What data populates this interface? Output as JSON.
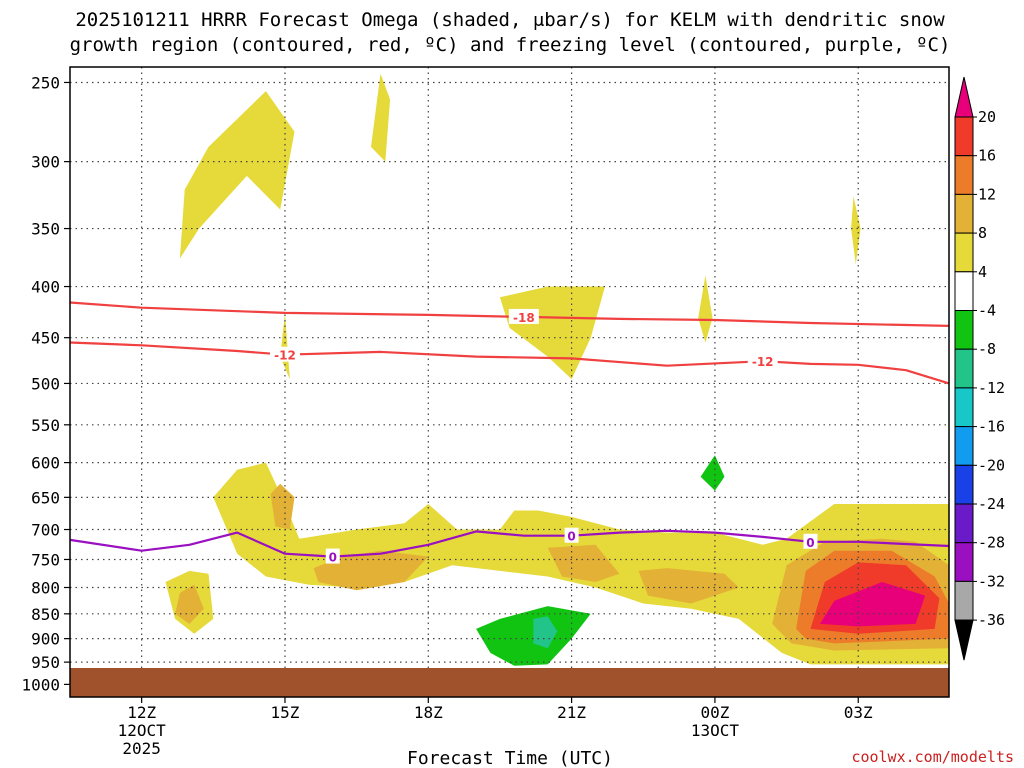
{
  "chart_data": {
    "type": "time-height cross section",
    "title_line1": "2025101211 HRRR Forecast Omega (shaded, μbar/s) for KELM with dendritic snow",
    "title_line2": "growth region (contoured, red, ºC) and freezing level (contoured, purple, ºC)",
    "xlabel": "Forecast Time (UTC)",
    "credit": "coolwx.com/modelts",
    "y_ticks": [
      250,
      300,
      350,
      400,
      450,
      500,
      550,
      600,
      650,
      700,
      750,
      800,
      850,
      900,
      950,
      1000
    ],
    "x_range_hours": [
      10.5,
      4.9
    ],
    "x_ticks": [
      {
        "hour": 12,
        "label": "12Z",
        "sub1": "12OCT",
        "sub2": "2025"
      },
      {
        "hour": 15,
        "label": "15Z",
        "sub1": "",
        "sub2": ""
      },
      {
        "hour": 18,
        "label": "18Z",
        "sub1": "",
        "sub2": ""
      },
      {
        "hour": 21,
        "label": "21Z",
        "sub1": "",
        "sub2": ""
      },
      {
        "hour": 0,
        "label": "00Z",
        "sub1": "13OCT",
        "sub2": ""
      },
      {
        "hour": 3,
        "label": "03Z",
        "sub1": "",
        "sub2": ""
      }
    ],
    "colorbar": {
      "labels": [
        "20",
        "16",
        "12",
        "8",
        "4",
        "-4",
        "-8",
        "-12",
        "-16",
        "-20",
        "-24",
        "-28",
        "-32",
        "-36"
      ],
      "colors": [
        "#e8007a",
        "#f03a2a",
        "#ec7c2a",
        "#e3b135",
        "#e6d93a",
        "#ffffff",
        "#12c412",
        "#22c48a",
        "#18c8c8",
        "#129cf0",
        "#1a40e8",
        "#6a1ac8",
        "#9a10c0",
        "#a8a8a8"
      ],
      "top_color": "#e8007a",
      "bottom_color": "#000000"
    },
    "contours": [
      {
        "name": "dgz-upper",
        "value": "-18",
        "color": "#f04040",
        "points": [
          [
            10.5,
            415
          ],
          [
            12,
            420
          ],
          [
            15,
            425
          ],
          [
            18,
            427
          ],
          [
            20,
            429
          ],
          [
            22,
            431
          ],
          [
            24,
            432
          ],
          [
            26,
            435
          ],
          [
            28.9,
            438
          ]
        ],
        "label_at": 20
      },
      {
        "name": "dgz-lower",
        "value": "-12",
        "color": "#f04040",
        "points": [
          [
            10.5,
            455
          ],
          [
            12,
            458
          ],
          [
            14,
            464
          ],
          [
            15,
            468
          ],
          [
            17,
            465
          ],
          [
            19,
            470
          ],
          [
            21,
            472
          ],
          [
            23,
            480
          ],
          [
            25,
            475
          ],
          [
            26,
            478
          ],
          [
            27,
            479
          ],
          [
            28,
            485
          ],
          [
            28.9,
            500
          ]
        ],
        "label_at": 15,
        "label_at2": 25
      },
      {
        "name": "freezing-level",
        "value": "0",
        "color": "#9a10c0",
        "points": [
          [
            10.5,
            717
          ],
          [
            12,
            735
          ],
          [
            13,
            725
          ],
          [
            14,
            705
          ],
          [
            15,
            740
          ],
          [
            16,
            745
          ],
          [
            17,
            740
          ],
          [
            18,
            725
          ],
          [
            19,
            703
          ],
          [
            20,
            710
          ],
          [
            21,
            710
          ],
          [
            22,
            705
          ],
          [
            23,
            702
          ],
          [
            24,
            705
          ],
          [
            25,
            712
          ],
          [
            26,
            720
          ],
          [
            27,
            720
          ],
          [
            28.9,
            727
          ]
        ],
        "label_at": 16,
        "label_at2": 21,
        "label_at3": 26
      }
    ],
    "omega_regions": [
      {
        "level": 4,
        "pts": [
          [
            12.8,
            375
          ],
          [
            12.9,
            320
          ],
          [
            13.4,
            290
          ],
          [
            14.6,
            255
          ],
          [
            15.2,
            280
          ],
          [
            14.9,
            335
          ],
          [
            14.2,
            310
          ],
          [
            13.2,
            350
          ]
        ]
      },
      {
        "level": 4,
        "pts": [
          [
            16.8,
            290
          ],
          [
            17,
            245
          ],
          [
            17.2,
            260
          ],
          [
            17.1,
            300
          ]
        ]
      },
      {
        "level": 4,
        "pts": [
          [
            15,
            425
          ],
          [
            15.1,
            495
          ],
          [
            14.9,
            470
          ]
        ]
      },
      {
        "level": 4,
        "pts": [
          [
            19.5,
            410
          ],
          [
            20.5,
            400
          ],
          [
            21.7,
            400
          ],
          [
            21.4,
            450
          ],
          [
            21,
            495
          ],
          [
            20.5,
            470
          ],
          [
            19.7,
            440
          ]
        ]
      },
      {
        "level": 4,
        "pts": [
          [
            23.8,
            390
          ],
          [
            23.95,
            430
          ],
          [
            23.8,
            455
          ],
          [
            23.65,
            430
          ]
        ]
      },
      {
        "level": 4,
        "pts": [
          [
            26.9,
            325
          ],
          [
            27.05,
            350
          ],
          [
            26.95,
            380
          ],
          [
            26.85,
            350
          ]
        ]
      },
      {
        "level": 4,
        "pts": [
          [
            13.5,
            650
          ],
          [
            14,
            610
          ],
          [
            14.6,
            600
          ],
          [
            15,
            660
          ],
          [
            15.3,
            715
          ],
          [
            16.5,
            700
          ],
          [
            17.5,
            690
          ],
          [
            18,
            660
          ],
          [
            18.6,
            700
          ],
          [
            19,
            700
          ],
          [
            19.5,
            700
          ],
          [
            19.8,
            670
          ],
          [
            20.3,
            670
          ],
          [
            21,
            680
          ],
          [
            22,
            700
          ],
          [
            23,
            705
          ],
          [
            24,
            705
          ],
          [
            25,
            725
          ],
          [
            25.5,
            715
          ],
          [
            26.5,
            660
          ],
          [
            28.9,
            660
          ],
          [
            28.9,
            955
          ],
          [
            26,
            955
          ],
          [
            25.4,
            930
          ],
          [
            24.5,
            860
          ],
          [
            23.5,
            840
          ],
          [
            22.5,
            830
          ],
          [
            21.5,
            800
          ],
          [
            20.5,
            780
          ],
          [
            19.5,
            770
          ],
          [
            18.5,
            760
          ],
          [
            17.5,
            790
          ],
          [
            16.5,
            800
          ],
          [
            15.5,
            795
          ],
          [
            14.6,
            780
          ],
          [
            14,
            740
          ]
        ]
      },
      {
        "level": 4,
        "pts": [
          [
            12.5,
            790
          ],
          [
            13,
            770
          ],
          [
            13.4,
            775
          ],
          [
            13.5,
            860
          ],
          [
            13.1,
            890
          ],
          [
            12.7,
            860
          ]
        ]
      },
      {
        "level": 8,
        "pts": [
          [
            14.7,
            645
          ],
          [
            14.9,
            630
          ],
          [
            15.2,
            650
          ],
          [
            15.1,
            700
          ],
          [
            14.8,
            695
          ]
        ]
      },
      {
        "level": 8,
        "pts": [
          [
            15.6,
            765
          ],
          [
            16.2,
            745
          ],
          [
            17,
            735
          ],
          [
            18,
            745
          ],
          [
            17.5,
            790
          ],
          [
            16.5,
            805
          ],
          [
            15.7,
            790
          ]
        ]
      },
      {
        "level": 8,
        "pts": [
          [
            20.5,
            730
          ],
          [
            21.5,
            725
          ],
          [
            22,
            775
          ],
          [
            21.5,
            790
          ],
          [
            20.8,
            780
          ]
        ]
      },
      {
        "level": 8,
        "pts": [
          [
            22.4,
            770
          ],
          [
            23,
            765
          ],
          [
            24.2,
            775
          ],
          [
            24.5,
            800
          ],
          [
            23.5,
            830
          ],
          [
            22.6,
            815
          ]
        ]
      },
      {
        "level": 8,
        "pts": [
          [
            12.8,
            810
          ],
          [
            13.1,
            795
          ],
          [
            13.3,
            840
          ],
          [
            13,
            870
          ],
          [
            12.7,
            850
          ]
        ]
      },
      {
        "level": 8,
        "pts": [
          [
            25.2,
            870
          ],
          [
            25.5,
            760
          ],
          [
            26.3,
            720
          ],
          [
            27.5,
            715
          ],
          [
            28.2,
            720
          ],
          [
            28.9,
            760
          ],
          [
            28.9,
            920
          ],
          [
            26.5,
            925
          ],
          [
            25.6,
            910
          ]
        ]
      },
      {
        "level": 12,
        "pts": [
          [
            25.7,
            880
          ],
          [
            25.9,
            770
          ],
          [
            26.5,
            735
          ],
          [
            27.7,
            735
          ],
          [
            28.6,
            780
          ],
          [
            28.9,
            830
          ],
          [
            28.9,
            900
          ],
          [
            26.5,
            910
          ],
          [
            25.9,
            900
          ]
        ]
      },
      {
        "level": 16,
        "pts": [
          [
            26,
            880
          ],
          [
            26.3,
            790
          ],
          [
            27,
            755
          ],
          [
            28,
            760
          ],
          [
            28.7,
            820
          ],
          [
            28.6,
            880
          ],
          [
            27,
            890
          ]
        ]
      },
      {
        "level": 20,
        "pts": [
          [
            26.2,
            870
          ],
          [
            26.5,
            825
          ],
          [
            27.5,
            790
          ],
          [
            28.4,
            815
          ],
          [
            28.2,
            870
          ],
          [
            27,
            875
          ]
        ]
      },
      {
        "level": -4,
        "pts": [
          [
            11.7,
            660
          ],
          [
            12.2,
            620
          ],
          [
            12.9,
            595
          ],
          [
            12.9,
            640
          ],
          [
            12.5,
            690
          ],
          [
            12,
            700
          ]
        ]
      },
      {
        "level": -4,
        "pts": [
          [
            13.6,
            470
          ],
          [
            14.2,
            450
          ],
          [
            14.2,
            500
          ],
          [
            13.8,
            510
          ],
          [
            13.5,
            480
          ]
        ]
      },
      {
        "level": -4,
        "pts": [
          [
            11.8,
            890
          ],
          [
            11.9,
            850
          ],
          [
            12.1,
            880
          ],
          [
            12,
            925
          ],
          [
            11.8,
            915
          ]
        ]
      },
      {
        "level": -4,
        "pts": [
          [
            14.3,
            930
          ],
          [
            14.6,
            880
          ],
          [
            15.5,
            860
          ],
          [
            15.5,
            920
          ],
          [
            15,
            950
          ],
          [
            14.4,
            955
          ]
        ]
      },
      {
        "level": -4,
        "pts": [
          [
            16.5,
            610
          ],
          [
            17,
            580
          ],
          [
            17.3,
            570
          ],
          [
            17.4,
            600
          ],
          [
            16.8,
            625
          ]
        ]
      },
      {
        "level": -4,
        "pts": [
          [
            19.2,
            575
          ],
          [
            19.5,
            570
          ],
          [
            20.1,
            540
          ],
          [
            20.5,
            580
          ],
          [
            19.5,
            585
          ]
        ]
      },
      {
        "level": -4,
        "pts": [
          [
            23.3,
            640
          ],
          [
            23.6,
            585
          ],
          [
            24,
            550
          ],
          [
            24.4,
            570
          ],
          [
            24.5,
            620
          ],
          [
            24.1,
            660
          ],
          [
            23.5,
            665
          ]
        ]
      },
      {
        "level": -4,
        "pts": [
          [
            17.9,
            930
          ],
          [
            18.4,
            860
          ],
          [
            19.5,
            820
          ],
          [
            20.8,
            800
          ],
          [
            21.5,
            830
          ],
          [
            22,
            870
          ],
          [
            23,
            945
          ],
          [
            23.5,
            960
          ],
          [
            23.9,
            975
          ],
          [
            17.9,
            975
          ]
        ]
      },
      {
        "level": -4,
        "pts": [
          [
            25,
            970
          ],
          [
            26,
            965
          ],
          [
            28.9,
            965
          ],
          [
            28.9,
            975
          ],
          [
            25,
            975
          ]
        ]
      },
      {
        "level": -8,
        "pts": [
          [
            19,
            880
          ],
          [
            19.5,
            860
          ],
          [
            20.5,
            835
          ],
          [
            21.4,
            850
          ],
          [
            21,
            900
          ],
          [
            20.5,
            955
          ],
          [
            19.8,
            958
          ],
          [
            19.3,
            930
          ]
        ]
      },
      {
        "level": -8,
        "pts": [
          [
            23.7,
            620
          ],
          [
            24,
            590
          ],
          [
            24.2,
            620
          ],
          [
            24,
            640
          ]
        ]
      },
      {
        "level": -12,
        "pts": [
          [
            20.2,
            860
          ],
          [
            20.5,
            855
          ],
          [
            20.7,
            885
          ],
          [
            20.5,
            920
          ],
          [
            20.2,
            910
          ]
        ]
      }
    ]
  }
}
